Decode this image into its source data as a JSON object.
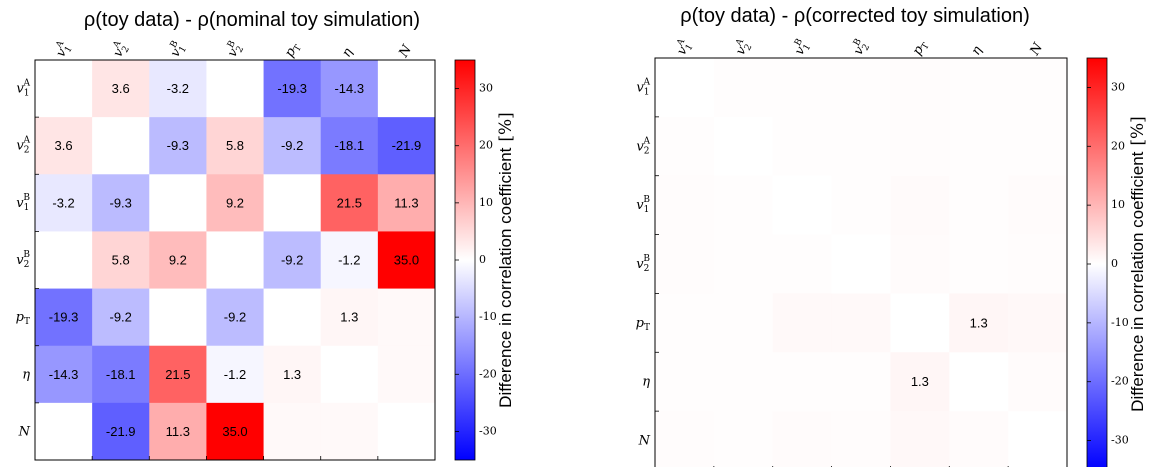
{
  "labels": [
    {
      "base": "v",
      "sub": "1",
      "sup": "A"
    },
    {
      "base": "v",
      "sub": "2",
      "sup": "A"
    },
    {
      "base": "v",
      "sub": "1",
      "sup": "B"
    },
    {
      "base": "v",
      "sub": "2",
      "sup": "B"
    },
    {
      "base": "p",
      "sub": "T",
      "sup": ""
    },
    {
      "base": "η",
      "sub": "",
      "sup": ""
    },
    {
      "base": "N",
      "sub": "",
      "sup": ""
    }
  ],
  "colorbar_label_text": "Difference in correlation coefficient",
  "colorbar_label_unit": "[%]",
  "colors": {
    "low": "#0000ff",
    "mid": "#ffffff",
    "high": "#ff0000"
  },
  "chart_data": [
    {
      "type": "heatmap",
      "title": "ρ(toy data) - ρ(nominal toy simulation)",
      "vmin": -35,
      "vmax": 35,
      "colorbar_ticks": [
        -30,
        -20,
        -10,
        0,
        10,
        20,
        30
      ],
      "values": [
        [
          0,
          3.6,
          -3.2,
          0,
          -19.3,
          -14.3,
          0
        ],
        [
          3.6,
          0,
          -9.3,
          5.8,
          -9.2,
          -18.1,
          -21.9
        ],
        [
          -3.2,
          -9.3,
          0,
          9.2,
          0,
          21.5,
          11.3
        ],
        [
          0,
          5.8,
          9.2,
          0,
          -9.2,
          -1.2,
          35.0
        ],
        [
          -19.3,
          -9.2,
          0,
          -9.2,
          0,
          1.3,
          0.8
        ],
        [
          -14.3,
          -18.1,
          21.5,
          -1.2,
          1.3,
          0,
          0.8
        ],
        [
          0,
          -21.9,
          11.3,
          35.0,
          0.8,
          0.8,
          0
        ]
      ],
      "labels_shown": [
        [
          "",
          "3.6",
          "-3.2",
          "",
          "-19.3",
          "-14.3",
          ""
        ],
        [
          "3.6",
          "",
          "-9.3",
          "5.8",
          "-9.2",
          "-18.1",
          "-21.9"
        ],
        [
          "-3.2",
          "-9.3",
          "",
          "9.2",
          "",
          "21.5",
          "11.3"
        ],
        [
          "",
          "5.8",
          "9.2",
          "",
          "-9.2",
          "-1.2",
          "35.0"
        ],
        [
          "-19.3",
          "-9.2",
          "",
          "-9.2",
          "",
          "1.3",
          ""
        ],
        [
          "-14.3",
          "-18.1",
          "21.5",
          "-1.2",
          "1.3",
          "",
          ""
        ],
        [
          "",
          "-21.9",
          "11.3",
          "35.0",
          "",
          "",
          ""
        ]
      ]
    },
    {
      "type": "heatmap",
      "title": "ρ(toy data) - ρ(corrected toy simulation)",
      "vmin": -35,
      "vmax": 35,
      "colorbar_ticks": [
        -30,
        -20,
        -10,
        0,
        10,
        20,
        30
      ],
      "values": [
        [
          0,
          0.3,
          0.3,
          0.3,
          0.4,
          0.3,
          0.3
        ],
        [
          0.3,
          0,
          0.3,
          0.3,
          0.4,
          0.3,
          0.3
        ],
        [
          0.4,
          0.3,
          0,
          0.3,
          0.7,
          0.3,
          0.5
        ],
        [
          0.4,
          0.3,
          0.3,
          0,
          0.6,
          0.3,
          0.4
        ],
        [
          0.3,
          0.3,
          0.8,
          0.8,
          0,
          1.3,
          1.0
        ],
        [
          0.3,
          0.3,
          0.3,
          0.3,
          1.3,
          0,
          0.6
        ],
        [
          0.4,
          0.3,
          0.5,
          0.4,
          1.0,
          0.6,
          0
        ]
      ],
      "labels_shown": [
        [
          "",
          "",
          "",
          "",
          "",
          "",
          ""
        ],
        [
          "",
          "",
          "",
          "",
          "",
          "",
          ""
        ],
        [
          "",
          "",
          "",
          "",
          "",
          "",
          ""
        ],
        [
          "",
          "",
          "",
          "",
          "",
          "",
          ""
        ],
        [
          "",
          "",
          "",
          "",
          "",
          "1.3",
          ""
        ],
        [
          "",
          "",
          "",
          "",
          "1.3",
          "",
          ""
        ],
        [
          "",
          "",
          "",
          "",
          "",
          "",
          ""
        ]
      ]
    }
  ]
}
